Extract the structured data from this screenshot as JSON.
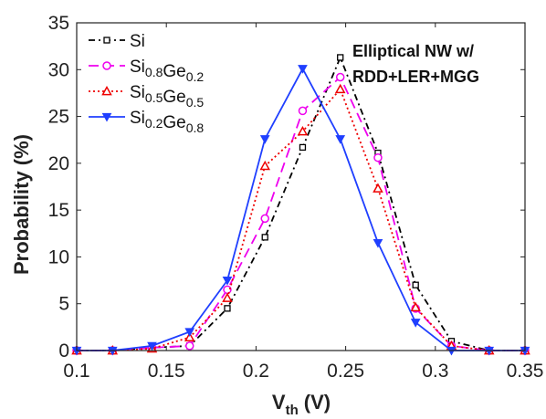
{
  "chart_data": {
    "type": "line",
    "title": "",
    "xlabel": "V",
    "xlabel_sub": "th",
    "xlabel_unit": "(V)",
    "ylabel": "Probability (%)",
    "xlim": [
      0.1,
      0.35
    ],
    "ylim": [
      0,
      35
    ],
    "xticks": [
      "0.1",
      "0.15",
      "0.2",
      "0.25",
      "0.3",
      "0.35"
    ],
    "yticks": [
      "0",
      "5",
      "10",
      "15",
      "20",
      "25",
      "30",
      "35"
    ],
    "annotation": [
      "Elliptical NW w/",
      "RDD+LER+MGG"
    ],
    "legend_position": "top-left",
    "x": [
      0.1,
      0.12,
      0.142,
      0.163,
      0.184,
      0.205,
      0.226,
      0.247,
      0.268,
      0.289,
      0.309,
      0.33,
      0.35
    ],
    "series": [
      {
        "name": "Si",
        "name_parts": [
          [
            "Si",
            ""
          ]
        ],
        "color": "#000000",
        "dash": "7,4,2,4",
        "marker": "square",
        "values": [
          0,
          0,
          0.3,
          0.5,
          4.5,
          12.1,
          21.7,
          31.3,
          21.1,
          7.0,
          1.0,
          0,
          0
        ]
      },
      {
        "name": "Si0.8Ge0.2",
        "name_parts": [
          [
            "Si",
            "0.8"
          ],
          [
            "Ge",
            "0.2"
          ]
        ],
        "color": "#ee00ee",
        "dash": "11,6",
        "marker": "circle",
        "values": [
          0,
          0,
          0.3,
          0.5,
          6.5,
          14.1,
          25.6,
          29.2,
          20.6,
          4.5,
          0.5,
          0,
          0
        ]
      },
      {
        "name": "Si0.5Ge0.5",
        "name_parts": [
          [
            "Si",
            "0.5"
          ],
          [
            "Ge",
            "0.5"
          ]
        ],
        "color": "#ee0000",
        "dash": "2,3",
        "marker": "triangle-up",
        "values": [
          0,
          0,
          0.2,
          1.4,
          5.6,
          19.7,
          23.4,
          27.9,
          17.3,
          4.6,
          0.5,
          0,
          0
        ]
      },
      {
        "name": "Si0.2Ge0.8",
        "name_parts": [
          [
            "Si",
            "0.2"
          ],
          [
            "Ge",
            "0.8"
          ]
        ],
        "color": "#1f3fff",
        "dash": "",
        "marker": "triangle-down",
        "values": [
          0,
          0,
          0.5,
          2.0,
          7.5,
          22.6,
          30.1,
          22.6,
          11.5,
          3.0,
          0,
          0,
          0
        ]
      }
    ]
  }
}
